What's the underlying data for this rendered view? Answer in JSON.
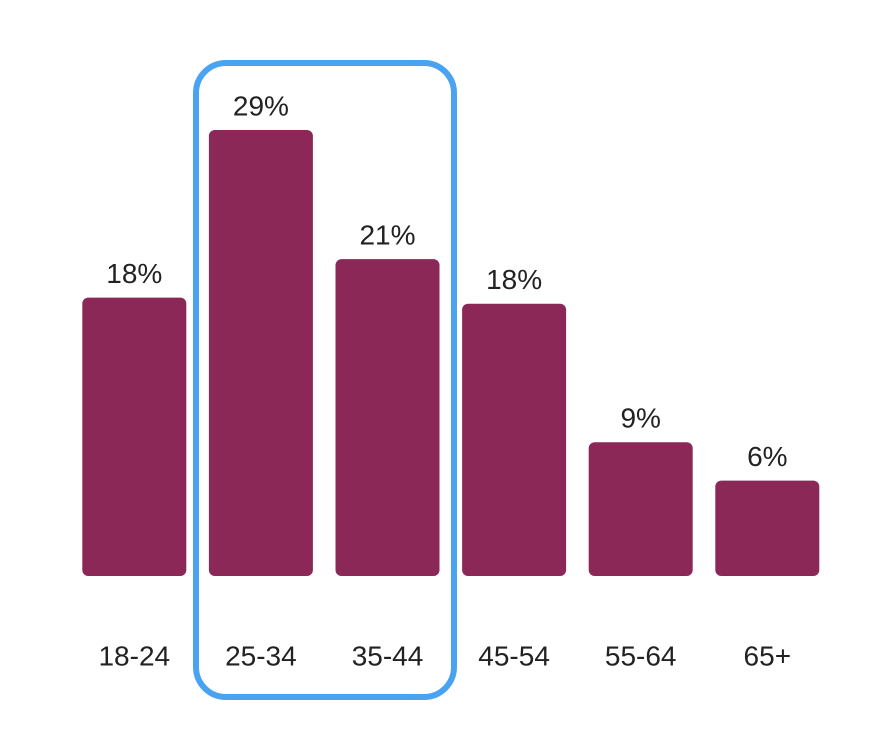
{
  "chart_data": {
    "type": "bar",
    "categories": [
      "18-24",
      "25-34",
      "35-44",
      "45-54",
      "55-64",
      "65+"
    ],
    "values": [
      18.1,
      29,
      20.6,
      17.7,
      8.7,
      6.2
    ],
    "value_labels": [
      "18%",
      "29%",
      "21%",
      "18%",
      "9%",
      "6%"
    ],
    "color": "#8b2857"
  }
}
